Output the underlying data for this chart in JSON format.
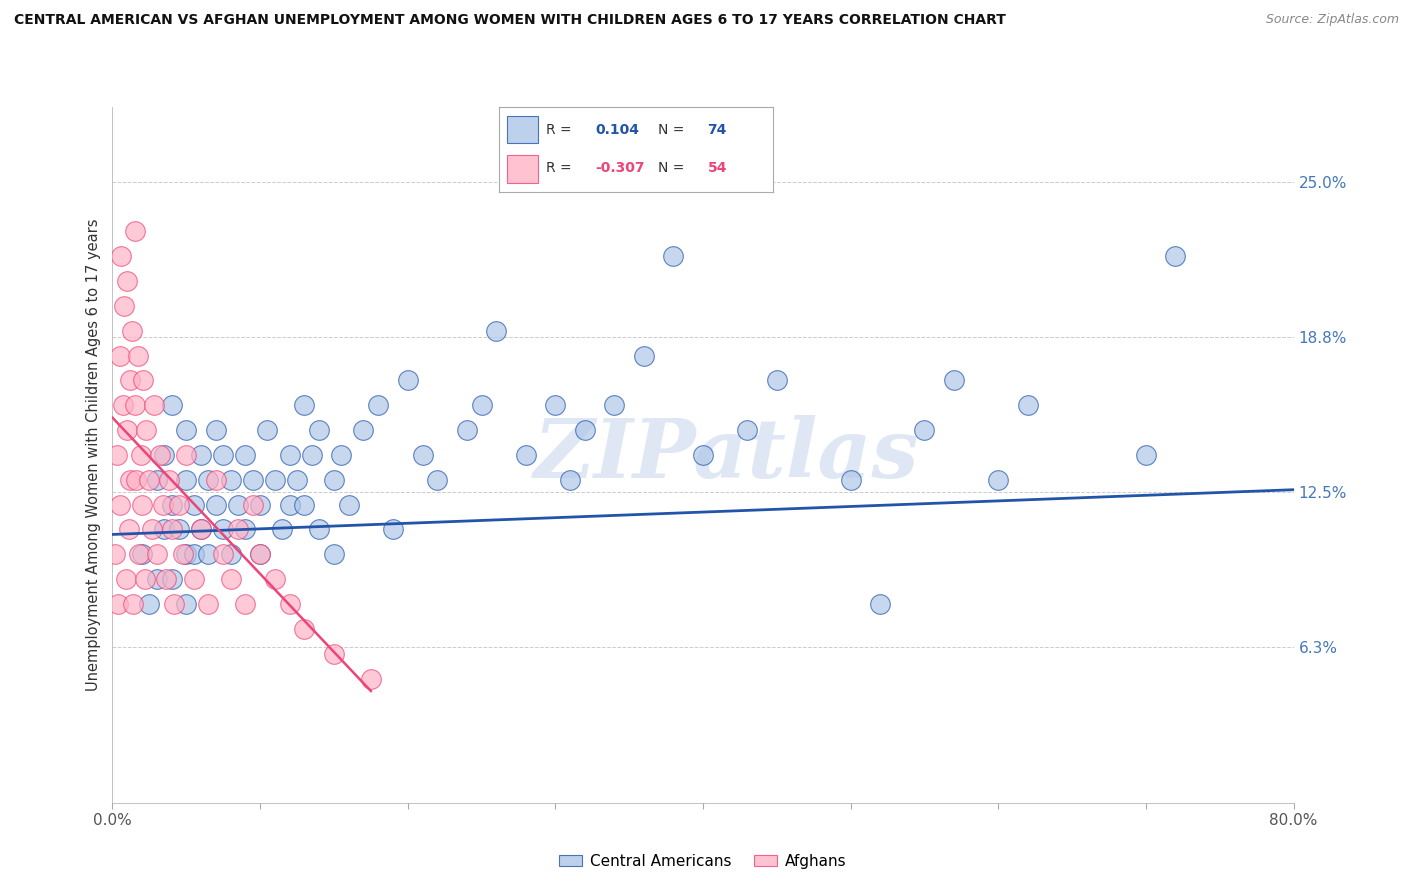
{
  "title": "CENTRAL AMERICAN VS AFGHAN UNEMPLOYMENT AMONG WOMEN WITH CHILDREN AGES 6 TO 17 YEARS CORRELATION CHART",
  "source": "Source: ZipAtlas.com",
  "ylabel": "Unemployment Among Women with Children Ages 6 to 17 years",
  "xlim": [
    0,
    0.8
  ],
  "ylim": [
    0,
    0.28
  ],
  "xticks": [
    0.0,
    0.1,
    0.2,
    0.3,
    0.4,
    0.5,
    0.6,
    0.7,
    0.8
  ],
  "right_yticks": [
    0.0,
    0.0625,
    0.125,
    0.1875,
    0.25
  ],
  "right_yticklabels": [
    "",
    "6.3%",
    "12.5%",
    "18.8%",
    "25.0%"
  ],
  "R_blue": 0.104,
  "N_blue": 74,
  "R_pink": -0.307,
  "N_pink": 54,
  "blue_color": "#AEC6E8",
  "pink_color": "#FFB3C6",
  "blue_line_color": "#2255AA",
  "pink_line_color": "#EE4477",
  "watermark": "ZIPatlas",
  "legend_label_blue": "Central Americans",
  "legend_label_pink": "Afghans",
  "blue_scatter_x": [
    0.02,
    0.025,
    0.03,
    0.03,
    0.035,
    0.035,
    0.04,
    0.04,
    0.04,
    0.045,
    0.05,
    0.05,
    0.05,
    0.05,
    0.055,
    0.055,
    0.06,
    0.06,
    0.065,
    0.065,
    0.07,
    0.07,
    0.075,
    0.075,
    0.08,
    0.08,
    0.085,
    0.09,
    0.09,
    0.095,
    0.1,
    0.1,
    0.105,
    0.11,
    0.115,
    0.12,
    0.12,
    0.125,
    0.13,
    0.13,
    0.135,
    0.14,
    0.14,
    0.15,
    0.15,
    0.155,
    0.16,
    0.17,
    0.18,
    0.19,
    0.2,
    0.21,
    0.22,
    0.24,
    0.25,
    0.26,
    0.28,
    0.3,
    0.31,
    0.32,
    0.34,
    0.36,
    0.38,
    0.4,
    0.43,
    0.45,
    0.5,
    0.52,
    0.55,
    0.57,
    0.6,
    0.62,
    0.7,
    0.72
  ],
  "blue_scatter_y": [
    0.1,
    0.08,
    0.13,
    0.09,
    0.11,
    0.14,
    0.12,
    0.09,
    0.16,
    0.11,
    0.1,
    0.13,
    0.08,
    0.15,
    0.12,
    0.1,
    0.14,
    0.11,
    0.13,
    0.1,
    0.15,
    0.12,
    0.11,
    0.14,
    0.13,
    0.1,
    0.12,
    0.14,
    0.11,
    0.13,
    0.12,
    0.1,
    0.15,
    0.13,
    0.11,
    0.14,
    0.12,
    0.13,
    0.16,
    0.12,
    0.14,
    0.11,
    0.15,
    0.13,
    0.1,
    0.14,
    0.12,
    0.15,
    0.16,
    0.11,
    0.17,
    0.14,
    0.13,
    0.15,
    0.16,
    0.19,
    0.14,
    0.16,
    0.13,
    0.15,
    0.16,
    0.18,
    0.22,
    0.14,
    0.15,
    0.17,
    0.13,
    0.08,
    0.15,
    0.17,
    0.13,
    0.16,
    0.14,
    0.22
  ],
  "pink_scatter_x": [
    0.002,
    0.003,
    0.004,
    0.005,
    0.005,
    0.006,
    0.007,
    0.008,
    0.009,
    0.01,
    0.01,
    0.011,
    0.012,
    0.012,
    0.013,
    0.014,
    0.015,
    0.015,
    0.016,
    0.017,
    0.018,
    0.019,
    0.02,
    0.021,
    0.022,
    0.023,
    0.025,
    0.027,
    0.028,
    0.03,
    0.032,
    0.034,
    0.036,
    0.038,
    0.04,
    0.042,
    0.045,
    0.048,
    0.05,
    0.055,
    0.06,
    0.065,
    0.07,
    0.075,
    0.08,
    0.085,
    0.09,
    0.095,
    0.1,
    0.11,
    0.12,
    0.13,
    0.15,
    0.175
  ],
  "pink_scatter_y": [
    0.1,
    0.14,
    0.08,
    0.18,
    0.12,
    0.22,
    0.16,
    0.2,
    0.09,
    0.15,
    0.21,
    0.11,
    0.17,
    0.13,
    0.19,
    0.08,
    0.16,
    0.23,
    0.13,
    0.18,
    0.1,
    0.14,
    0.12,
    0.17,
    0.09,
    0.15,
    0.13,
    0.11,
    0.16,
    0.1,
    0.14,
    0.12,
    0.09,
    0.13,
    0.11,
    0.08,
    0.12,
    0.1,
    0.14,
    0.09,
    0.11,
    0.08,
    0.13,
    0.1,
    0.09,
    0.11,
    0.08,
    0.12,
    0.1,
    0.09,
    0.08,
    0.07,
    0.06,
    0.05
  ],
  "blue_trend_x": [
    0.0,
    0.8
  ],
  "blue_trend_y": [
    0.108,
    0.126
  ],
  "pink_trend_x": [
    0.0,
    0.175
  ],
  "pink_trend_y": [
    0.155,
    0.045
  ],
  "background_color": "#ffffff",
  "grid_color": "#cccccc"
}
